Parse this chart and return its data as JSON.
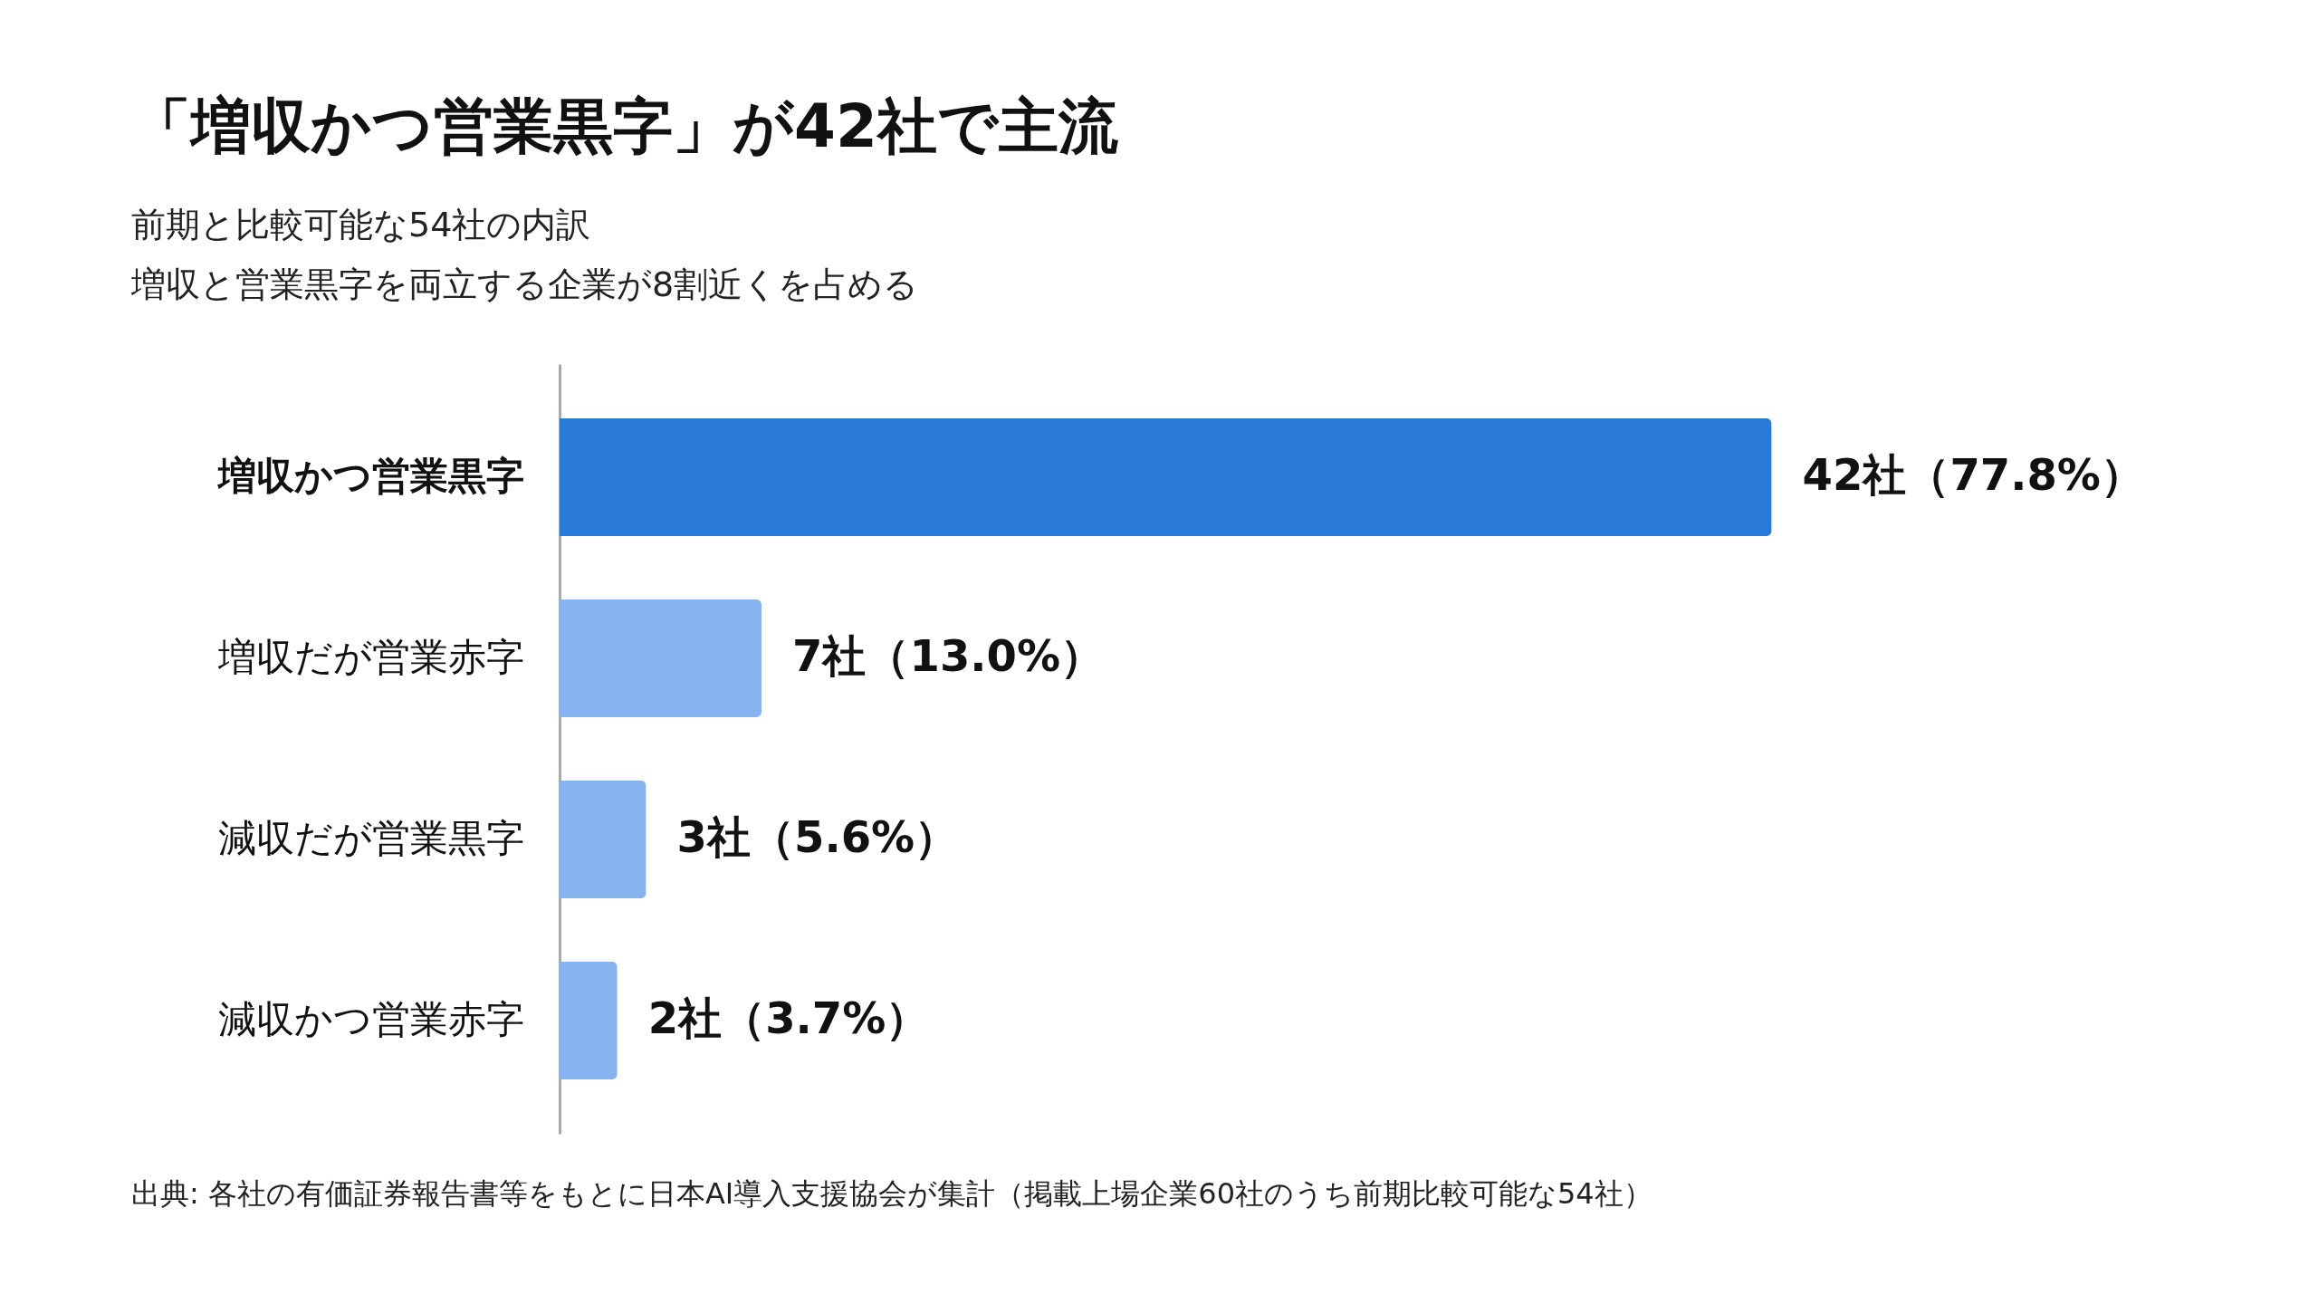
{
  "chart_data": {
    "type": "bar",
    "orientation": "horizontal",
    "title": "「増収かつ営業黒字」が42社で主流",
    "subtitle": "前期と比較可能な54社の内訳",
    "categories": [
      "増収かつ営業黒字",
      "増収だが営業赤字",
      "減収だが営業黒字",
      "減収かつ営業赤字"
    ],
    "values": [
      42,
      7,
      3,
      2
    ],
    "colors": [
      "#2979d8",
      "#86b4ee",
      "#86b4ee",
      "#86b4ee"
    ],
    "value_labels": [
      "42社（77.8%）",
      "7社（13.0%）",
      "3社（5.6%）",
      "2社（3.7%）"
    ],
    "tick_labels": "y",
    "annotations": [
      "増収と営業黒字を両立する企業が8割近くを占める",
      "出典: 各社の有価証券報告書等をもとに日本AI導入支援協会が集計（掲載上場企業60社のうち前期比較可能な54社）"
    ]
  }
}
